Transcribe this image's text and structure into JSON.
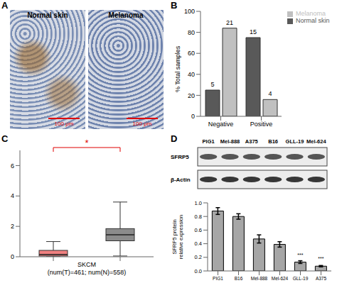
{
  "panels": [
    "A",
    "B",
    "C",
    "D"
  ],
  "images": {
    "labels": [
      "Normal skin",
      "Melanoma"
    ],
    "scale_bar": "100 μm"
  },
  "blot": {
    "lanes": [
      "PIG1",
      "Mel-888",
      "A375",
      "B16",
      "GLL-19",
      "Mel-624"
    ],
    "bands": [
      "SFRP5",
      "β-Actin"
    ]
  },
  "chart_data": [
    {
      "type": "bar",
      "ylabel": "% Total samples",
      "categories": [
        "Negative",
        "Positive"
      ],
      "series": [
        {
          "name": "Normal skin",
          "color": "#595959",
          "values": [
            25,
            75
          ],
          "counts": [
            5,
            15
          ]
        },
        {
          "name": "Melanoma",
          "color": "#c0c0c0",
          "values": [
            84,
            16
          ],
          "counts": [
            21,
            4
          ]
        }
      ],
      "ylim": [
        0,
        100
      ],
      "yticks": [
        0,
        20,
        40,
        60,
        80,
        100
      ],
      "legend": "upper right"
    },
    {
      "type": "box",
      "xlabel": "SKCM\n(num(T)=461; num(N)=558)",
      "categories": [
        null,
        null
      ],
      "boxes": [
        {
          "color": "#f08080",
          "whisker_low": 0,
          "q1": 0.05,
          "median": 0.15,
          "q3": 0.42,
          "whisker_high": 1.0
        },
        {
          "color": "#8c8c8c",
          "whisker_low": 0.05,
          "q1": 1.05,
          "median": 1.45,
          "q3": 1.85,
          "whisker_high": 3.6
        }
      ],
      "ylim": [
        0,
        7
      ],
      "yticks": [
        0,
        2,
        4,
        6
      ],
      "annotation": "*"
    },
    {
      "type": "bar",
      "ylabel": "SFRP5 protein relative expression",
      "categories": [
        "PIG1",
        "B16",
        "Mel-888",
        "Mel-624",
        "GLL-19",
        "A375"
      ],
      "values": [
        0.88,
        0.8,
        0.47,
        0.39,
        0.13,
        0.07
      ],
      "errors": [
        0.05,
        0.04,
        0.06,
        0.04,
        0.02,
        0.01
      ],
      "annotations": [
        null,
        null,
        null,
        null,
        "***",
        "***"
      ],
      "color": "#a6a6a6",
      "ylim": [
        0,
        1
      ],
      "yticks": [
        {
          "value": 0,
          "label": "0.0"
        },
        {
          "value": 0.2,
          "label": "0.2"
        },
        {
          "value": 0.4,
          "label": "0.4"
        },
        {
          "value": 0.6,
          "label": "0.6"
        },
        {
          "value": 0.8,
          "label": "0.8"
        },
        {
          "value": 1,
          "label": "1.0"
        }
      ]
    }
  ]
}
